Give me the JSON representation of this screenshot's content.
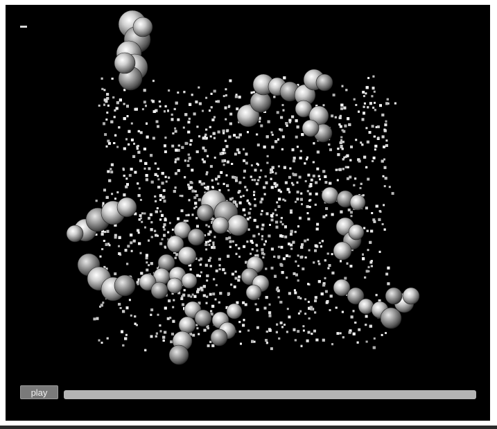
{
  "controls": {
    "play_label": "play",
    "progress_fraction": 0.0
  },
  "scene": {
    "background_color": "#000000",
    "particle_color": "#ffffff",
    "molecule_color": "#9a9a9a",
    "progress_color": "#b4b4b4"
  }
}
